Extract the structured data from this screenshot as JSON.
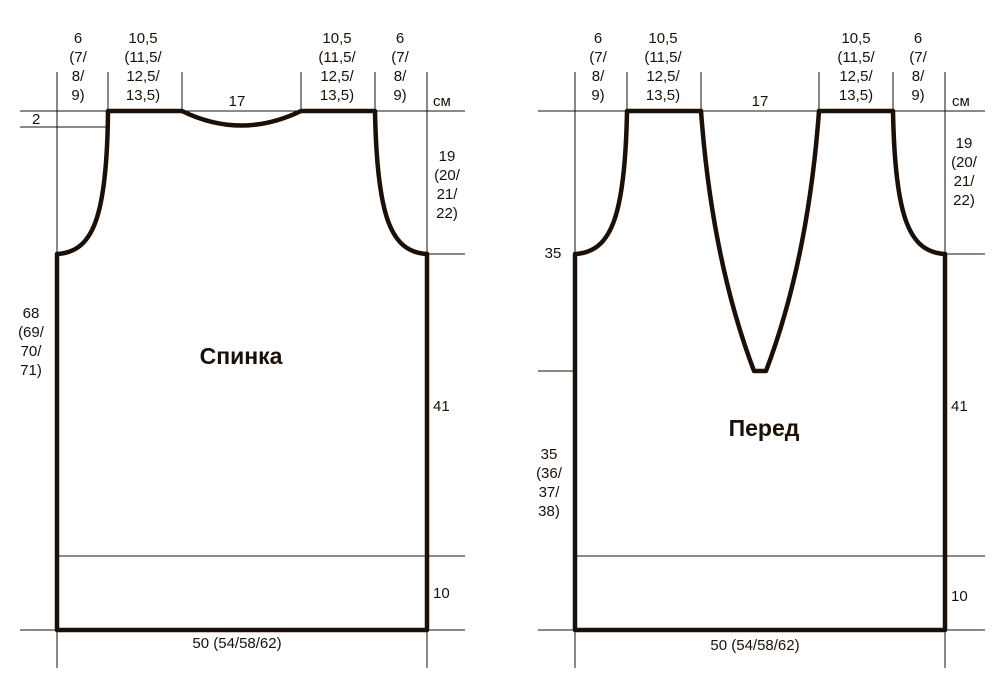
{
  "colors": {
    "ink": "#1a1008",
    "background": "#ffffff"
  },
  "back": {
    "title": "Спинка",
    "unit": "см",
    "shoulder_width": [
      "6",
      "(7/",
      "8/",
      "9)"
    ],
    "shoulder_slope": [
      "10,5",
      "(11,5/",
      "12,5/",
      "13,5)"
    ],
    "neck_width": "17",
    "neck_depth": "2",
    "armhole_depth": [
      "19",
      "(20/",
      "21/",
      "22)"
    ],
    "total_length": [
      "68",
      "(69/",
      "70/",
      "71)"
    ],
    "side_length": "41",
    "rib_height": "10",
    "width": "50  (54/58/62)"
  },
  "front": {
    "title": "Перед",
    "unit": "см",
    "shoulder_width": [
      "6",
      "(7/",
      "8/",
      "9)"
    ],
    "shoulder_slope": [
      "10,5",
      "(11,5/",
      "12,5/",
      "13,5)"
    ],
    "neck_width": "17",
    "armhole_depth": [
      "19",
      "(20/",
      "21/",
      "22)"
    ],
    "neck_depth": "35",
    "lower_length": [
      "35",
      "(36/",
      "37/",
      "38)"
    ],
    "side_length": "41",
    "rib_height": "10",
    "width": "50  (54/58/62)"
  }
}
